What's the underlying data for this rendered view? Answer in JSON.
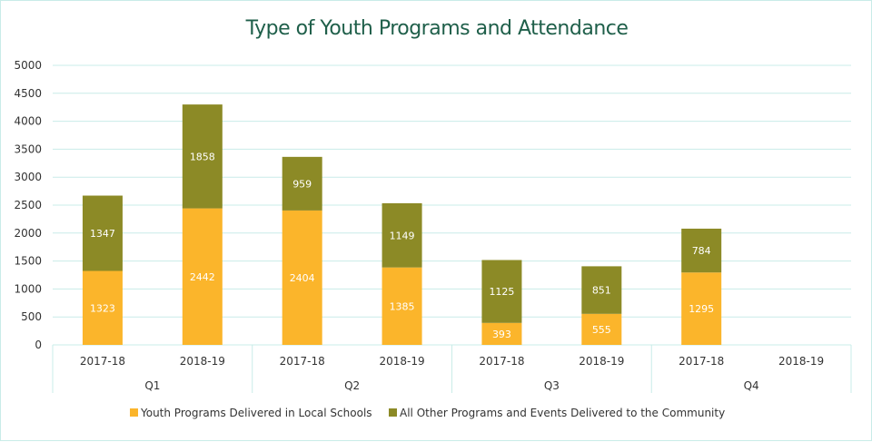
{
  "chart_data": {
    "type": "bar",
    "stacked": true,
    "title": "Type of Youth Programs and Attendance",
    "xlabel": "",
    "ylabel": "",
    "ylim": [
      0,
      5000
    ],
    "yticks": [
      0,
      500,
      1000,
      1500,
      2000,
      2500,
      3000,
      3500,
      4000,
      4500,
      5000
    ],
    "groups": [
      "Q1",
      "Q2",
      "Q3",
      "Q4"
    ],
    "categories": [
      "2017-18",
      "2018-19",
      "2017-18",
      "2018-19",
      "2017-18",
      "2018-19",
      "2017-18",
      "2018-19"
    ],
    "category_labels": [
      [
        "Q1",
        "2017-18"
      ],
      [
        "Q1",
        "2018-19"
      ],
      [
        "Q2",
        "2017-18"
      ],
      [
        "Q2",
        "2018-19"
      ],
      [
        "Q3",
        "2017-18"
      ],
      [
        "Q3",
        "2018-19"
      ],
      [
        "Q4",
        "2017-18"
      ],
      [
        "Q4",
        "2018-19"
      ]
    ],
    "series": [
      {
        "name": "Youth Programs Delivered in Local Schools",
        "color": "#fbb52b",
        "values": [
          1323,
          2442,
          2404,
          1385,
          393,
          555,
          1295,
          null
        ]
      },
      {
        "name": "All Other Programs and Events Delivered to the Community",
        "color": "#8c8a26",
        "values": [
          1347,
          1858,
          959,
          1149,
          1125,
          851,
          784,
          null
        ]
      }
    ],
    "grid": true,
    "legend_position": "bottom"
  }
}
